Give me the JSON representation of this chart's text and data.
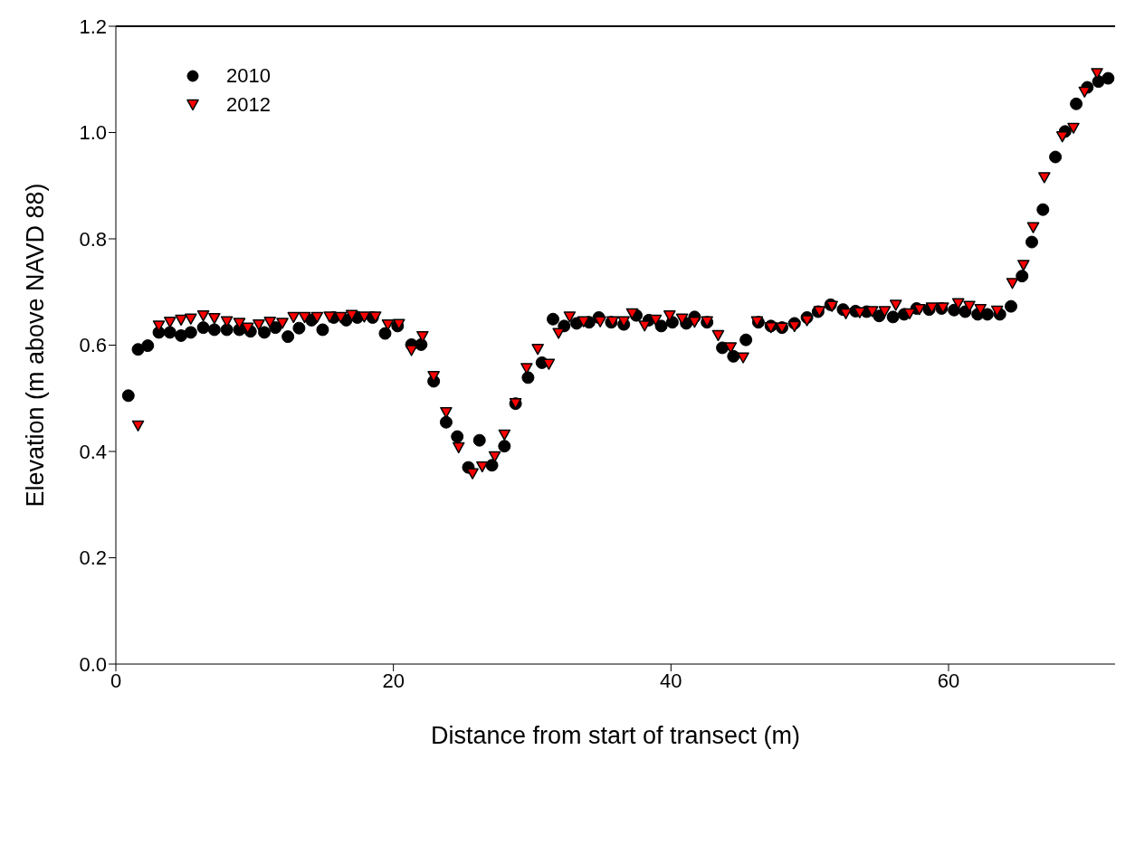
{
  "chart_data": {
    "type": "scatter",
    "xlabel": "Distance from start of transect (m)",
    "ylabel": "Elevation (m above NAVD 88)",
    "xlim": [
      0,
      72
    ],
    "xticks": [
      0,
      20,
      40,
      60
    ],
    "ylim": [
      0,
      1.2
    ],
    "yticks": [
      {
        "value": 0,
        "label": "0.0"
      },
      {
        "value": 0.2,
        "label": "0.2"
      },
      {
        "value": 0.4,
        "label": "0.4"
      },
      {
        "value": 0.6,
        "label": "0.6"
      },
      {
        "value": 0.8,
        "label": "0.8"
      },
      {
        "value": 1,
        "label": "1.0"
      },
      {
        "value": 1.2,
        "label": "1.2"
      }
    ],
    "grid": false,
    "legend": "top left",
    "series": [
      {
        "name": "2010",
        "color": "#000000",
        "marker": "circle",
        "x": [
          0.9,
          1.6,
          2.3,
          3.1,
          3.9,
          4.7,
          5.4,
          6.3,
          7.1,
          8.0,
          8.9,
          9.7,
          10.7,
          11.5,
          12.4,
          13.2,
          14.1,
          14.9,
          15.7,
          16.6,
          17.4,
          18.5,
          19.4,
          20.3,
          21.3,
          22.0,
          22.9,
          23.8,
          24.6,
          25.4,
          26.2,
          27.1,
          28.0,
          28.8,
          29.7,
          30.7,
          31.5,
          32.3,
          33.2,
          34.1,
          34.8,
          35.7,
          36.6,
          37.5,
          38.4,
          39.3,
          40.1,
          41.1,
          41.7,
          42.6,
          43.7,
          44.5,
          45.4,
          46.3,
          47.2,
          48.0,
          48.9,
          49.8,
          50.6,
          51.5,
          52.4,
          53.3,
          54.1,
          55.0,
          56.0,
          56.8,
          57.7,
          58.6,
          59.5,
          60.4,
          61.2,
          62.1,
          62.8,
          63.7,
          64.5,
          65.3,
          66.0,
          66.8,
          67.7,
          68.4,
          69.2,
          70.0,
          70.8,
          71.5
        ],
        "values": [
          0.505,
          0.592,
          0.599,
          0.624,
          0.624,
          0.618,
          0.624,
          0.633,
          0.629,
          0.629,
          0.629,
          0.626,
          0.624,
          0.633,
          0.616,
          0.632,
          0.647,
          0.629,
          0.652,
          0.647,
          0.652,
          0.652,
          0.622,
          0.636,
          0.601,
          0.601,
          0.532,
          0.455,
          0.428,
          0.37,
          0.421,
          0.374,
          0.41,
          0.49,
          0.539,
          0.567,
          0.649,
          0.636,
          0.641,
          0.643,
          0.652,
          0.643,
          0.639,
          0.656,
          0.647,
          0.636,
          0.643,
          0.641,
          0.653,
          0.643,
          0.595,
          0.579,
          0.61,
          0.643,
          0.636,
          0.633,
          0.641,
          0.652,
          0.663,
          0.676,
          0.667,
          0.664,
          0.663,
          0.655,
          0.653,
          0.658,
          0.669,
          0.667,
          0.669,
          0.666,
          0.663,
          0.658,
          0.658,
          0.658,
          0.673,
          0.73,
          0.794,
          0.855,
          0.954,
          1.002,
          1.054,
          1.085,
          1.096,
          1.102
        ]
      },
      {
        "name": "2012",
        "color": "#ff0000",
        "marker": "triangle",
        "x": [
          1.6,
          3.1,
          3.9,
          4.7,
          5.4,
          6.3,
          7.1,
          8.0,
          8.9,
          9.5,
          10.3,
          11.1,
          12.0,
          12.8,
          13.6,
          14.5,
          15.4,
          16.2,
          17.0,
          17.9,
          18.7,
          19.6,
          20.4,
          21.3,
          22.1,
          22.9,
          23.8,
          24.7,
          25.7,
          26.4,
          27.3,
          28.0,
          28.8,
          29.6,
          30.4,
          31.2,
          31.9,
          32.7,
          33.7,
          34.9,
          35.8,
          36.6,
          37.2,
          38.1,
          38.9,
          39.9,
          40.8,
          41.7,
          42.6,
          43.4,
          44.3,
          45.2,
          46.2,
          47.2,
          48.0,
          48.9,
          49.8,
          50.7,
          51.6,
          52.6,
          53.6,
          54.5,
          55.4,
          56.2,
          57.2,
          57.9,
          58.8,
          59.6,
          60.7,
          61.5,
          62.3,
          63.5,
          64.6,
          65.4,
          66.1,
          66.9,
          68.2,
          69.0,
          69.8,
          70.7
        ],
        "values": [
          0.448,
          0.636,
          0.643,
          0.647,
          0.649,
          0.655,
          0.65,
          0.644,
          0.641,
          0.632,
          0.638,
          0.643,
          0.641,
          0.652,
          0.652,
          0.652,
          0.653,
          0.652,
          0.656,
          0.653,
          0.653,
          0.638,
          0.639,
          0.59,
          0.616,
          0.541,
          0.473,
          0.407,
          0.358,
          0.371,
          0.39,
          0.431,
          0.49,
          0.556,
          0.592,
          0.564,
          0.622,
          0.653,
          0.644,
          0.644,
          0.644,
          0.644,
          0.659,
          0.636,
          0.647,
          0.655,
          0.649,
          0.643,
          0.644,
          0.618,
          0.595,
          0.576,
          0.644,
          0.633,
          0.632,
          0.635,
          0.646,
          0.663,
          0.673,
          0.659,
          0.661,
          0.663,
          0.663,
          0.675,
          0.659,
          0.667,
          0.67,
          0.67,
          0.678,
          0.673,
          0.667,
          0.664,
          0.716,
          0.75,
          0.821,
          0.915,
          0.992,
          1.008,
          1.076,
          1.111
        ]
      }
    ]
  }
}
